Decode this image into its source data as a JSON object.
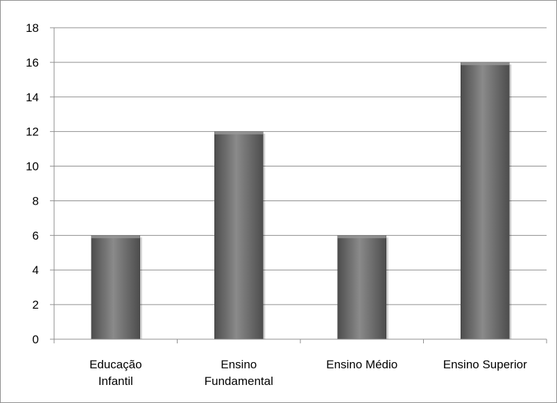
{
  "chart_data": {
    "type": "bar",
    "title": "",
    "xlabel": "",
    "ylabel": "",
    "categories": [
      [
        "Educação",
        "Infantil"
      ],
      [
        "Ensino",
        "Fundamental"
      ],
      [
        "Ensino Médio"
      ],
      [
        "Ensino Superior"
      ]
    ],
    "values": [
      6,
      12,
      6,
      16
    ],
    "ylim": [
      0,
      18
    ],
    "yticks": [
      0,
      2,
      4,
      6,
      8,
      10,
      12,
      14,
      16,
      18
    ],
    "grid": true,
    "legend": "none",
    "colors": {
      "bar_dark": "#4d4d4d",
      "bar_light": "#8a8a8a",
      "grid": "#8c8c8c",
      "axis": "#8c8c8c",
      "text": "#000000"
    }
  }
}
